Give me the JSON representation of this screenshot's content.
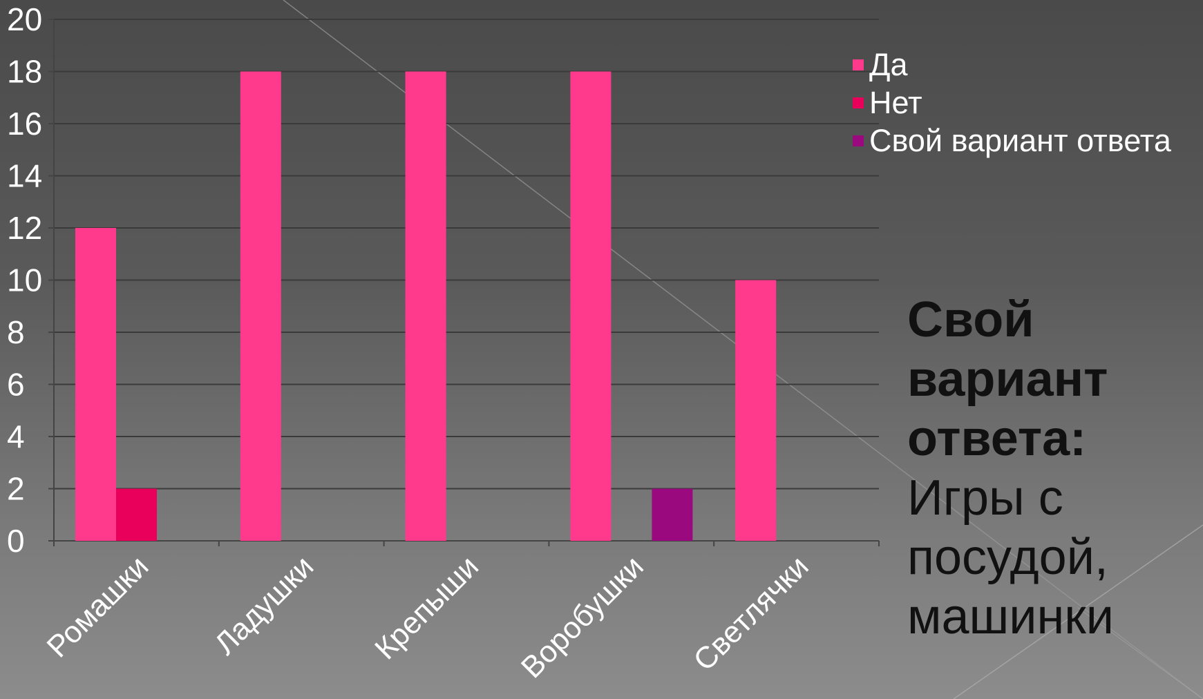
{
  "chart_data": {
    "type": "bar",
    "title": "",
    "xlabel": "",
    "ylabel": "",
    "categories": [
      "Ромашки",
      "Ладушки",
      "Крепыши",
      "Воробушки",
      "Светлячки"
    ],
    "series": [
      {
        "name": "Да",
        "color": "#ff3a8c",
        "values": [
          12,
          18,
          18,
          18,
          10
        ]
      },
      {
        "name": "Нет",
        "color": "#e8005a",
        "values": [
          2,
          0,
          0,
          0,
          0
        ]
      },
      {
        "name": "Свой вариант ответа",
        "color": "#9a0a7e",
        "values": [
          0,
          0,
          0,
          2,
          0
        ]
      }
    ],
    "ylim": [
      0,
      20
    ],
    "yticks": [
      0,
      2,
      4,
      6,
      8,
      10,
      12,
      14,
      16,
      18,
      20
    ],
    "grid": true,
    "legend_position": "right"
  },
  "note": {
    "title": "Свой вариант ответа:",
    "body": "Игры с посудой, машинки"
  },
  "colors": {
    "tick_text": "#ffffff",
    "gridline": "#3a3a3a",
    "note_text": "#111111"
  }
}
